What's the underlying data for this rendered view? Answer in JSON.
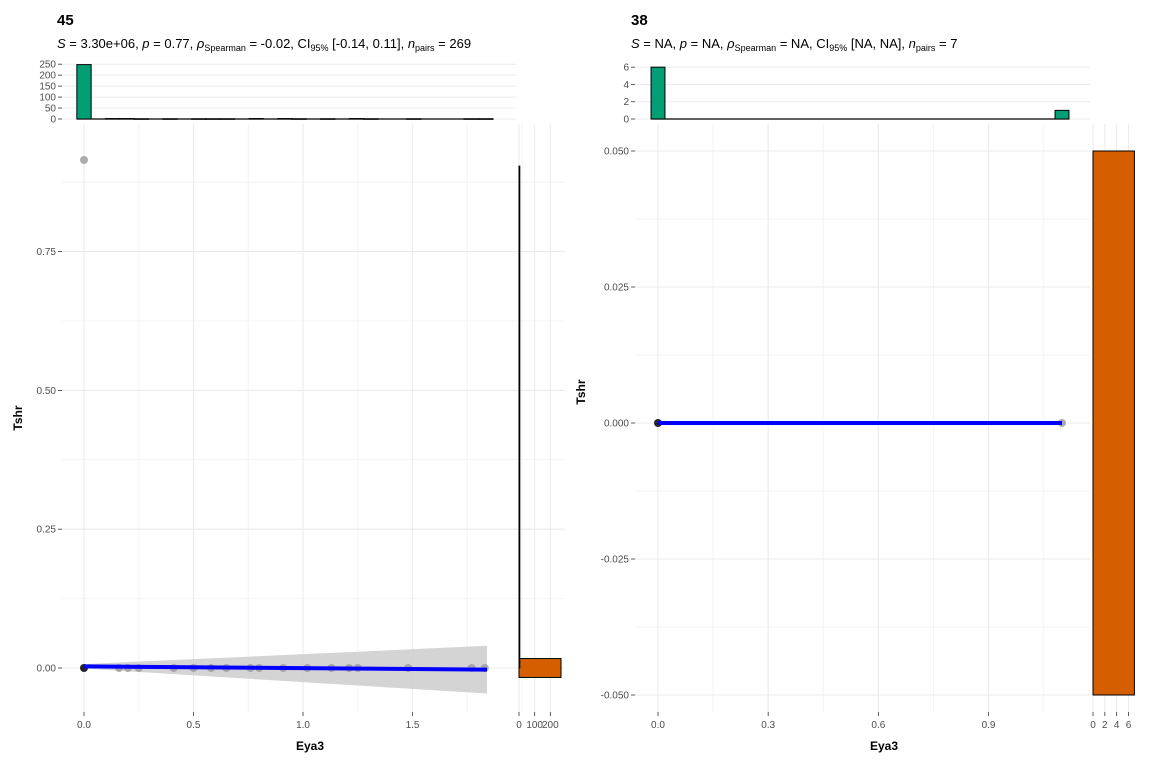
{
  "chart_data": [
    {
      "type": "scatter",
      "title": "45",
      "subtitle": {
        "s": "3.30e+06",
        "p": "0.77",
        "rho_label": "Spearman",
        "rho": "-0.02",
        "ci_label": "95%",
        "ci": "[-0.14, 0.11]",
        "n_label": "pairs",
        "n": "269"
      },
      "xlabel": "Eya3",
      "ylabel": "Tshr",
      "xlim": [
        -0.09,
        2.2
      ],
      "ylim": [
        -0.09,
        0.945
      ],
      "x_ticks": [
        "0.0",
        "0.5",
        "1.0",
        "1.5"
      ],
      "y_ticks": [
        "0.00",
        "0.25",
        "0.50",
        "0.75"
      ],
      "points": [
        {
          "x": 0.0,
          "y": 0.0,
          "weight": "many"
        },
        {
          "x": 0.0,
          "y": 0.915
        },
        {
          "x": 0.16,
          "y": 0.0
        },
        {
          "x": 0.2,
          "y": 0.0
        },
        {
          "x": 0.25,
          "y": 0.0
        },
        {
          "x": 0.41,
          "y": 0.0
        },
        {
          "x": 0.5,
          "y": 0.0
        },
        {
          "x": 0.58,
          "y": 0.0
        },
        {
          "x": 0.65,
          "y": 0.0
        },
        {
          "x": 0.76,
          "y": 0.0
        },
        {
          "x": 0.8,
          "y": 0.0
        },
        {
          "x": 0.91,
          "y": 0.0
        },
        {
          "x": 1.02,
          "y": 0.0
        },
        {
          "x": 1.13,
          "y": 0.0
        },
        {
          "x": 1.21,
          "y": 0.0
        },
        {
          "x": 1.25,
          "y": 0.0
        },
        {
          "x": 1.48,
          "y": 0.0
        },
        {
          "x": 1.77,
          "y": 0.0
        },
        {
          "x": 1.83,
          "y": 0.0
        }
      ],
      "fit": {
        "x": [
          0.0,
          1.84
        ],
        "y": [
          0.003,
          -0.003
        ]
      },
      "ci_band": {
        "x": [
          0.0,
          1.84
        ],
        "upper": [
          0.007,
          0.04
        ],
        "lower": [
          -0.001,
          -0.046
        ]
      },
      "x_hist": {
        "ylim": [
          0,
          260
        ],
        "y_ticks": [
          "0",
          "50",
          "100",
          "150",
          "200",
          "250"
        ],
        "bin_width": 0.0655,
        "bins": [
          {
            "x": 0.0,
            "count": 248
          },
          {
            "x": 0.131,
            "count": 2
          },
          {
            "x": 0.196,
            "count": 2
          },
          {
            "x": 0.262,
            "count": 1
          },
          {
            "x": 0.393,
            "count": 1
          },
          {
            "x": 0.524,
            "count": 1
          },
          {
            "x": 0.589,
            "count": 1
          },
          {
            "x": 0.655,
            "count": 1
          },
          {
            "x": 0.786,
            "count": 2
          },
          {
            "x": 0.917,
            "count": 2
          },
          {
            "x": 0.982,
            "count": 1
          },
          {
            "x": 1.113,
            "count": 1
          },
          {
            "x": 1.244,
            "count": 2
          },
          {
            "x": 1.31,
            "count": 1
          },
          {
            "x": 1.506,
            "count": 1
          },
          {
            "x": 1.768,
            "count": 1
          },
          {
            "x": 1.834,
            "count": 1
          }
        ],
        "fill": "#009e73"
      },
      "y_hist": {
        "xlim": [
          0,
          268
        ],
        "x_ticks": [
          "0",
          "100",
          "200"
        ],
        "bins": [
          {
            "y": 0.0,
            "bin_width": 0.034,
            "count": 268
          },
          {
            "y": 0.452,
            "bin_width": 0.904,
            "count": 1
          }
        ],
        "fill": "#d55e00"
      },
      "colors": {
        "points": "#9e9e9e",
        "origin": "#000000",
        "fit": "#0000ff",
        "band": "#cccccc"
      }
    },
    {
      "type": "scatter",
      "title": "38",
      "subtitle": {
        "s": "NA",
        "p": "NA",
        "rho_label": "Spearman",
        "rho": "NA",
        "ci_label": "95%",
        "ci": "[NA, NA]",
        "n_label": "pairs",
        "n": "7"
      },
      "xlabel": "Eya3",
      "ylabel": "Tshr",
      "xlim": [
        -0.04,
        1.16
      ],
      "ylim": [
        -0.055,
        0.055
      ],
      "x_ticks": [
        "0.0",
        "0.3",
        "0.6",
        "0.9"
      ],
      "y_ticks": [
        "0.050",
        "0.025",
        "0.000",
        "-0.025",
        "-0.050"
      ],
      "points": [
        {
          "x": 0.0,
          "y": 0.0,
          "weight": "many"
        },
        {
          "x": 1.1,
          "y": 0.0
        }
      ],
      "fit": {
        "x": [
          0.0,
          1.1
        ],
        "y": [
          0.0,
          0.0
        ]
      },
      "x_hist": {
        "ylim": [
          0,
          6.6
        ],
        "y_ticks": [
          "0",
          "2",
          "4",
          "6"
        ],
        "bin_width": 0.0379,
        "bins": [
          {
            "x": 0.0,
            "count": 6
          },
          {
            "x": 1.1,
            "count": 1
          }
        ],
        "fill": "#009e73"
      },
      "y_hist": {
        "xlim": [
          0,
          7.1
        ],
        "x_ticks": [
          "0",
          "2",
          "4",
          "6"
        ],
        "bins": [
          {
            "y": 0.0,
            "bin_width": 0.1,
            "count": 7
          }
        ],
        "fill": "#d55e00"
      },
      "colors": {
        "points": "#9e9e9e",
        "origin": "#000000",
        "fit": "#0000ff"
      }
    }
  ]
}
